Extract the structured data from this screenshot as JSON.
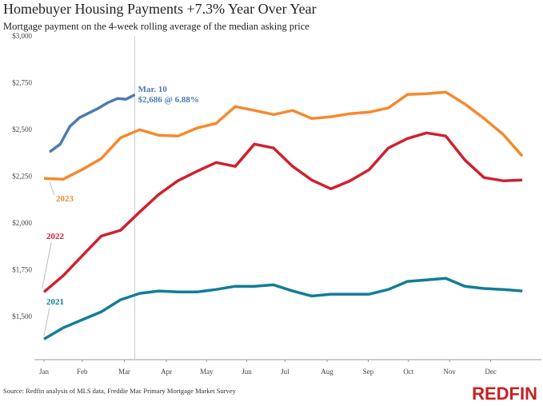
{
  "chart_data": {
    "type": "line",
    "title": "Homebuyer Housing Payments +7.3% Year Over Year",
    "subtitle": "Mortgage payment on the 4-week rolling average of the median asking price",
    "source": "Source: Redfin analysis of MLS data, Freddie Mac Primary Mortgage Market Survey",
    "brand": "REDFIN",
    "xlim": [
      0,
      53
    ],
    "xticks": [
      {
        "value": 1,
        "label": "Jan"
      },
      {
        "value": 5,
        "label": "Feb"
      },
      {
        "value": 9.4,
        "label": "Mar"
      },
      {
        "value": 13.8,
        "label": "Apr"
      },
      {
        "value": 18,
        "label": "May"
      },
      {
        "value": 22.2,
        "label": "Jun"
      },
      {
        "value": 26.2,
        "label": "Jul"
      },
      {
        "value": 30.6,
        "label": "Aug"
      },
      {
        "value": 34.9,
        "label": "Sep"
      },
      {
        "value": 39.1,
        "label": "Oct"
      },
      {
        "value": 43.4,
        "label": "Nov"
      },
      {
        "value": 47.7,
        "label": "Dec"
      }
    ],
    "ylim": [
      1270,
      3000
    ],
    "yticks": [
      {
        "value": 1500,
        "label": "$1,500"
      },
      {
        "value": 1750,
        "label": "$1,750"
      },
      {
        "value": 2000,
        "label": "$2,000"
      },
      {
        "value": 2250,
        "label": "$2,250"
      },
      {
        "value": 2500,
        "label": "$2,500"
      },
      {
        "value": 2750,
        "label": "$2,750"
      },
      {
        "value": 3000,
        "label": "$3,000"
      }
    ],
    "series": [
      {
        "name": "2021",
        "color": "#127d96",
        "x": [
          1,
          3,
          5,
          7,
          9,
          11,
          13,
          15,
          17,
          19,
          21,
          23,
          25,
          27,
          29,
          31,
          33,
          35,
          37,
          39,
          41,
          43,
          45,
          47,
          49,
          51
        ],
        "values": [
          1380,
          1440,
          1483,
          1526,
          1590,
          1624,
          1637,
          1632,
          1632,
          1645,
          1662,
          1662,
          1670,
          1637,
          1610,
          1620,
          1620,
          1620,
          1645,
          1688,
          1696,
          1705,
          1662,
          1650,
          1645,
          1637
        ]
      },
      {
        "name": "2022",
        "color": "#d0202f",
        "x": [
          1,
          3,
          5,
          7,
          9,
          11,
          13,
          15,
          17,
          19,
          21,
          23,
          25,
          27,
          29,
          31,
          33,
          35,
          37,
          39,
          41,
          43,
          45,
          47,
          49,
          51
        ],
        "values": [
          1632,
          1718,
          1825,
          1931,
          1961,
          2059,
          2153,
          2226,
          2277,
          2324,
          2303,
          2422,
          2401,
          2303,
          2230,
          2183,
          2226,
          2286,
          2401,
          2452,
          2482,
          2465,
          2337,
          2243,
          2226,
          2230
        ]
      },
      {
        "name": "2023",
        "color": "#f58a2d",
        "x": [
          1,
          3,
          5,
          7,
          9,
          11,
          13,
          15,
          17,
          19,
          21,
          23,
          25,
          27,
          29,
          31,
          33,
          35,
          37,
          39,
          41,
          43,
          45,
          47,
          49,
          51
        ],
        "values": [
          2239,
          2234,
          2286,
          2345,
          2456,
          2499,
          2469,
          2465,
          2508,
          2533,
          2623,
          2602,
          2580,
          2602,
          2559,
          2568,
          2585,
          2593,
          2615,
          2687,
          2691,
          2700,
          2636,
          2559,
          2474,
          2358
        ]
      },
      {
        "color": "#4c7bb0",
        "x": [
          1.6,
          2.7,
          3.7,
          4.7,
          6.7,
          7.7,
          8.7,
          9.6,
          10.5
        ],
        "values": [
          2380,
          2422,
          2516,
          2563,
          2614,
          2644,
          2666,
          2662,
          2686
        ]
      }
    ],
    "annotation": {
      "x": 10.5,
      "lines": [
        "Mar. 10",
        "$2,686 @ 6.88%"
      ]
    }
  }
}
